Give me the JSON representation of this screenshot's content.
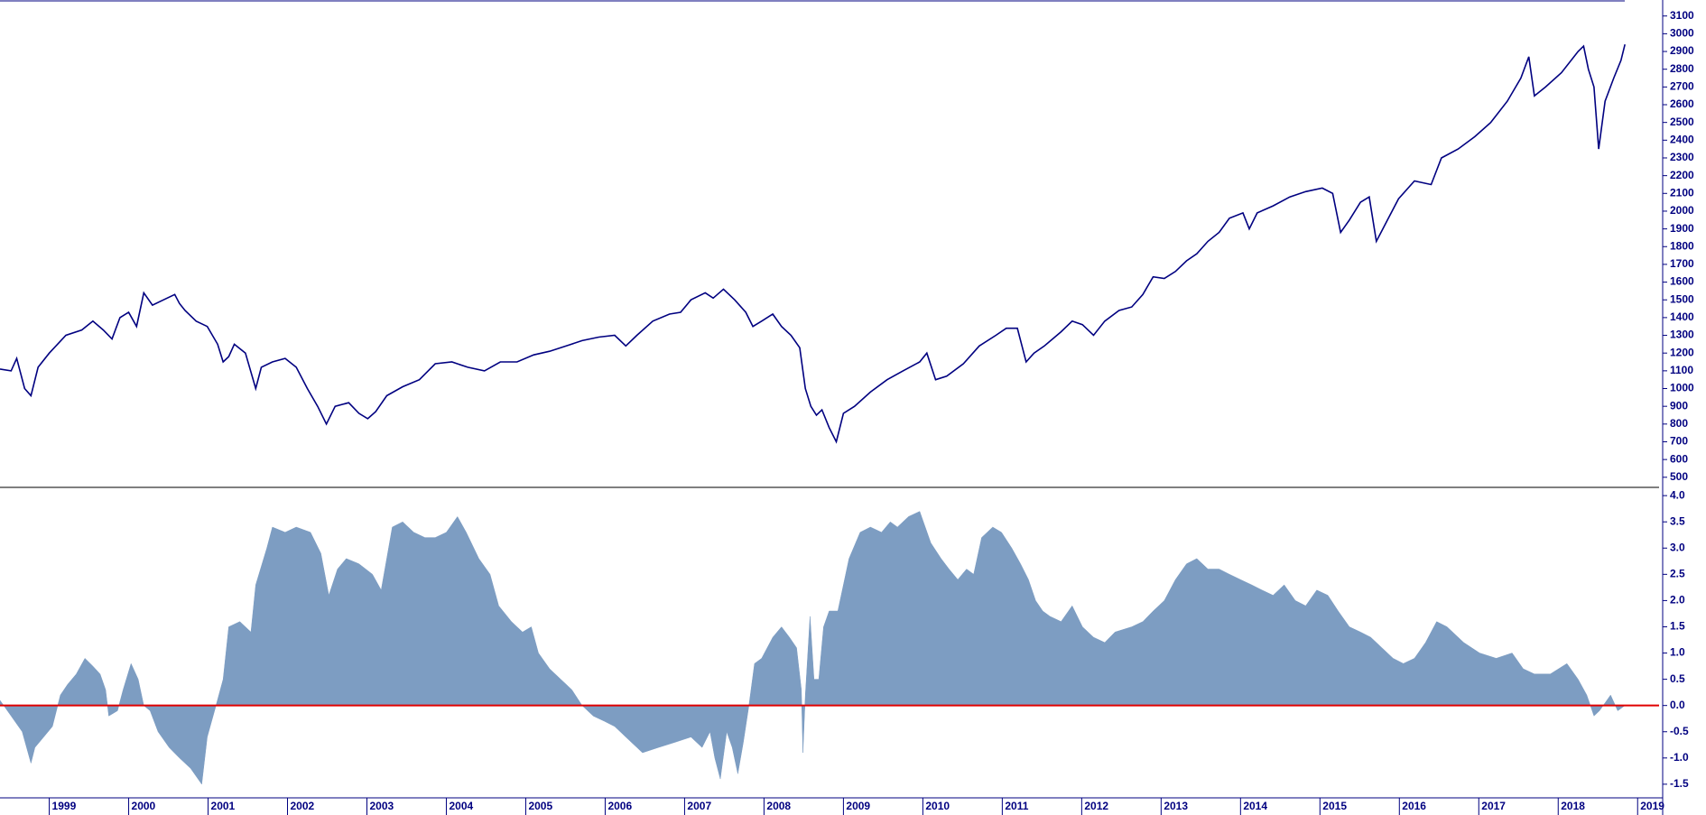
{
  "chart_data": [
    {
      "type": "line",
      "color": "#000080",
      "x": [
        1998.38,
        1998.52,
        1998.59,
        1998.69,
        1998.77,
        1998.86,
        1999.0,
        1999.21,
        1999.41,
        1999.55,
        1999.68,
        1999.79,
        1999.89,
        2000.0,
        2000.1,
        2000.19,
        2000.3,
        2000.44,
        2000.58,
        2000.64,
        2000.71,
        2000.85,
        2000.99,
        2001.12,
        2001.19,
        2001.26,
        2001.33,
        2001.47,
        2001.6,
        2001.67,
        2001.81,
        2001.97,
        2002.11,
        2002.25,
        2002.38,
        2002.49,
        2002.6,
        2002.77,
        2002.9,
        2003.01,
        2003.11,
        2003.25,
        2003.45,
        2003.66,
        2003.86,
        2004.07,
        2004.27,
        2004.48,
        2004.68,
        2004.89,
        2005.1,
        2005.3,
        2005.51,
        2005.71,
        2005.92,
        2006.12,
        2006.26,
        2006.4,
        2006.6,
        2006.81,
        2006.95,
        2007.08,
        2007.26,
        2007.36,
        2007.49,
        2007.63,
        2007.77,
        2007.86,
        2007.97,
        2008.11,
        2008.22,
        2008.34,
        2008.45,
        2008.52,
        2008.59,
        2008.66,
        2008.73,
        2008.82,
        2008.91,
        2009.0,
        2009.14,
        2009.34,
        2009.55,
        2009.75,
        2009.96,
        2010.05,
        2010.16,
        2010.3,
        2010.51,
        2010.71,
        2010.92,
        2011.05,
        2011.19,
        2011.3,
        2011.4,
        2011.53,
        2011.74,
        2011.88,
        2012.01,
        2012.15,
        2012.29,
        2012.47,
        2012.63,
        2012.77,
        2012.9,
        2013.04,
        2013.18,
        2013.32,
        2013.45,
        2013.59,
        2013.73,
        2013.86,
        2014.03,
        2014.11,
        2014.21,
        2014.41,
        2014.62,
        2014.82,
        2015.03,
        2015.16,
        2015.26,
        2015.37,
        2015.51,
        2015.62,
        2015.71,
        2015.85,
        2015.99,
        2016.19,
        2016.4,
        2016.53,
        2016.74,
        2016.95,
        2017.15,
        2017.36,
        2017.53,
        2017.63,
        2017.7,
        2017.84,
        2018.04,
        2018.25,
        2018.32,
        2018.38,
        2018.45,
        2018.51,
        2018.59,
        2018.7,
        2018.79,
        2018.84
      ],
      "values": [
        1110,
        1100,
        1170,
        1000,
        960,
        1120,
        1200,
        1300,
        1330,
        1380,
        1330,
        1280,
        1400,
        1430,
        1350,
        1540,
        1470,
        1500,
        1530,
        1480,
        1440,
        1380,
        1350,
        1250,
        1150,
        1180,
        1250,
        1200,
        1000,
        1120,
        1150,
        1170,
        1120,
        1000,
        900,
        800,
        900,
        920,
        860,
        830,
        870,
        960,
        1010,
        1050,
        1140,
        1150,
        1120,
        1100,
        1150,
        1150,
        1190,
        1210,
        1240,
        1270,
        1290,
        1300,
        1240,
        1300,
        1380,
        1420,
        1430,
        1500,
        1540,
        1510,
        1560,
        1500,
        1430,
        1350,
        1380,
        1420,
        1350,
        1300,
        1230,
        1000,
        900,
        850,
        880,
        780,
        700,
        860,
        900,
        980,
        1050,
        1100,
        1150,
        1200,
        1050,
        1070,
        1140,
        1240,
        1300,
        1340,
        1340,
        1150,
        1200,
        1240,
        1320,
        1380,
        1360,
        1300,
        1380,
        1440,
        1460,
        1530,
        1630,
        1620,
        1660,
        1720,
        1760,
        1830,
        1880,
        1960,
        1990,
        1900,
        1990,
        2030,
        2080,
        2110,
        2130,
        2100,
        1880,
        1950,
        2050,
        2080,
        1830,
        1950,
        2070,
        2170,
        2150,
        2300,
        2350,
        2420,
        2500,
        2620,
        2750,
        2870,
        2650,
        2700,
        2780,
        2900,
        2930,
        2800,
        2700,
        2350,
        2620,
        2750,
        2850,
        2940
      ],
      "xlim": [
        1998.38,
        2019.27
      ],
      "ylim": [
        443,
        3180
      ],
      "yticks": [
        500,
        600,
        700,
        800,
        900,
        1000,
        1100,
        1200,
        1300,
        1400,
        1500,
        1600,
        1700,
        1800,
        1900,
        2000,
        2100,
        2200,
        2300,
        2400,
        2500,
        2600,
        2700,
        2800,
        2900,
        3000,
        3100
      ]
    },
    {
      "type": "area",
      "color": "#7d9dc2",
      "baseline_color": "#e00000",
      "x": [
        1998.38,
        1998.52,
        1998.66,
        1998.77,
        1998.82,
        1998.93,
        1999.04,
        1999.14,
        1999.23,
        1999.34,
        1999.45,
        1999.55,
        1999.64,
        1999.71,
        1999.75,
        1999.86,
        1999.93,
        2000.03,
        2000.12,
        2000.19,
        2000.27,
        2000.37,
        2000.51,
        2000.64,
        2000.78,
        2000.92,
        2000.99,
        2001.1,
        2001.19,
        2001.26,
        2001.4,
        2001.54,
        2001.6,
        2001.74,
        2001.81,
        2001.97,
        2002.11,
        2002.29,
        2002.42,
        2002.52,
        2002.63,
        2002.74,
        2002.9,
        2003.07,
        2003.18,
        2003.32,
        2003.45,
        2003.59,
        2003.73,
        2003.86,
        2004.0,
        2004.14,
        2004.25,
        2004.41,
        2004.55,
        2004.66,
        2004.82,
        2004.96,
        2005.07,
        2005.16,
        2005.3,
        2005.44,
        2005.58,
        2005.71,
        2005.85,
        2005.99,
        2006.12,
        2006.26,
        2006.47,
        2006.67,
        2006.88,
        2007.08,
        2007.22,
        2007.32,
        2007.38,
        2007.45,
        2007.53,
        2007.6,
        2007.67,
        2007.74,
        2007.81,
        2007.88,
        2007.97,
        2008.11,
        2008.22,
        2008.32,
        2008.41,
        2008.47,
        2008.49,
        2008.52,
        2008.58,
        2008.63,
        2008.69,
        2008.75,
        2008.82,
        2008.93,
        2009.07,
        2009.21,
        2009.34,
        2009.48,
        2009.59,
        2009.68,
        2009.82,
        2009.96,
        2010.1,
        2010.23,
        2010.33,
        2010.44,
        2010.55,
        2010.64,
        2010.74,
        2010.88,
        2010.99,
        2011.12,
        2011.23,
        2011.33,
        2011.42,
        2011.51,
        2011.6,
        2011.74,
        2011.88,
        2012.01,
        2012.15,
        2012.29,
        2012.42,
        2012.63,
        2012.77,
        2012.9,
        2013.04,
        2013.18,
        2013.32,
        2013.45,
        2013.59,
        2013.73,
        2013.86,
        2014.0,
        2014.14,
        2014.27,
        2014.41,
        2014.55,
        2014.69,
        2014.82,
        2014.96,
        2015.1,
        2015.23,
        2015.37,
        2015.51,
        2015.64,
        2015.78,
        2015.92,
        2016.05,
        2016.19,
        2016.33,
        2016.47,
        2016.6,
        2016.81,
        2017.01,
        2017.22,
        2017.42,
        2017.56,
        2017.7,
        2017.9,
        2018.11,
        2018.25,
        2018.36,
        2018.45,
        2018.52,
        2018.66,
        2018.75,
        2018.84
      ],
      "values": [
        0.1,
        -0.2,
        -0.5,
        -1.1,
        -0.8,
        -0.6,
        -0.4,
        0.2,
        0.4,
        0.6,
        0.9,
        0.75,
        0.6,
        0.3,
        -0.2,
        -0.1,
        0.3,
        0.8,
        0.5,
        0.0,
        -0.1,
        -0.5,
        -0.8,
        -1.0,
        -1.2,
        -1.5,
        -0.6,
        0.0,
        0.5,
        1.5,
        1.6,
        1.4,
        2.3,
        3.0,
        3.4,
        3.3,
        3.4,
        3.3,
        2.9,
        2.1,
        2.6,
        2.8,
        2.7,
        2.5,
        2.2,
        3.4,
        3.5,
        3.3,
        3.2,
        3.2,
        3.3,
        3.6,
        3.3,
        2.8,
        2.5,
        1.9,
        1.6,
        1.4,
        1.5,
        1.0,
        0.7,
        0.5,
        0.3,
        0.0,
        -0.2,
        -0.3,
        -0.4,
        -0.6,
        -0.9,
        -0.8,
        -0.7,
        -0.6,
        -0.8,
        -0.5,
        -1.0,
        -1.4,
        -0.5,
        -0.8,
        -1.3,
        -0.7,
        0.0,
        0.8,
        0.9,
        1.3,
        1.5,
        1.3,
        1.1,
        0.3,
        -0.9,
        0.2,
        1.7,
        0.5,
        0.5,
        1.5,
        1.8,
        1.8,
        2.8,
        3.3,
        3.4,
        3.3,
        3.5,
        3.4,
        3.6,
        3.7,
        3.1,
        2.8,
        2.6,
        2.4,
        2.6,
        2.5,
        3.2,
        3.4,
        3.3,
        3.0,
        2.7,
        2.4,
        2.0,
        1.8,
        1.7,
        1.6,
        1.9,
        1.5,
        1.3,
        1.2,
        1.4,
        1.5,
        1.6,
        1.8,
        2.0,
        2.4,
        2.7,
        2.8,
        2.6,
        2.6,
        2.5,
        2.4,
        2.3,
        2.2,
        2.1,
        2.3,
        2.0,
        1.9,
        2.2,
        2.1,
        1.8,
        1.5,
        1.4,
        1.3,
        1.1,
        0.9,
        0.8,
        0.9,
        1.2,
        1.6,
        1.5,
        1.2,
        1.0,
        0.9,
        1.0,
        0.7,
        0.6,
        0.6,
        0.8,
        0.5,
        0.2,
        -0.2,
        -0.1,
        0.2,
        -0.1,
        0.0
      ],
      "xlim": [
        1998.38,
        2019.27
      ],
      "ylim": [
        -1.76,
        4.14
      ],
      "yticks": [
        {
          "value": 4,
          "label": "4.0"
        },
        3.5,
        {
          "value": 3,
          "label": "3.0"
        },
        2.5,
        {
          "value": 2,
          "label": "2.0"
        },
        1.5,
        {
          "value": 1,
          "label": "1.0"
        },
        0.5,
        {
          "value": 0,
          "label": "0.0"
        },
        -0.5,
        {
          "value": -1,
          "label": "-1.0"
        },
        -1.5
      ],
      "xticks": [
        1999,
        2000,
        2001,
        2002,
        2003,
        2004,
        2005,
        2006,
        2007,
        2008,
        2009,
        2010,
        2011,
        2012,
        2013,
        2014,
        2015,
        2016,
        2017,
        2018,
        2019
      ]
    }
  ]
}
